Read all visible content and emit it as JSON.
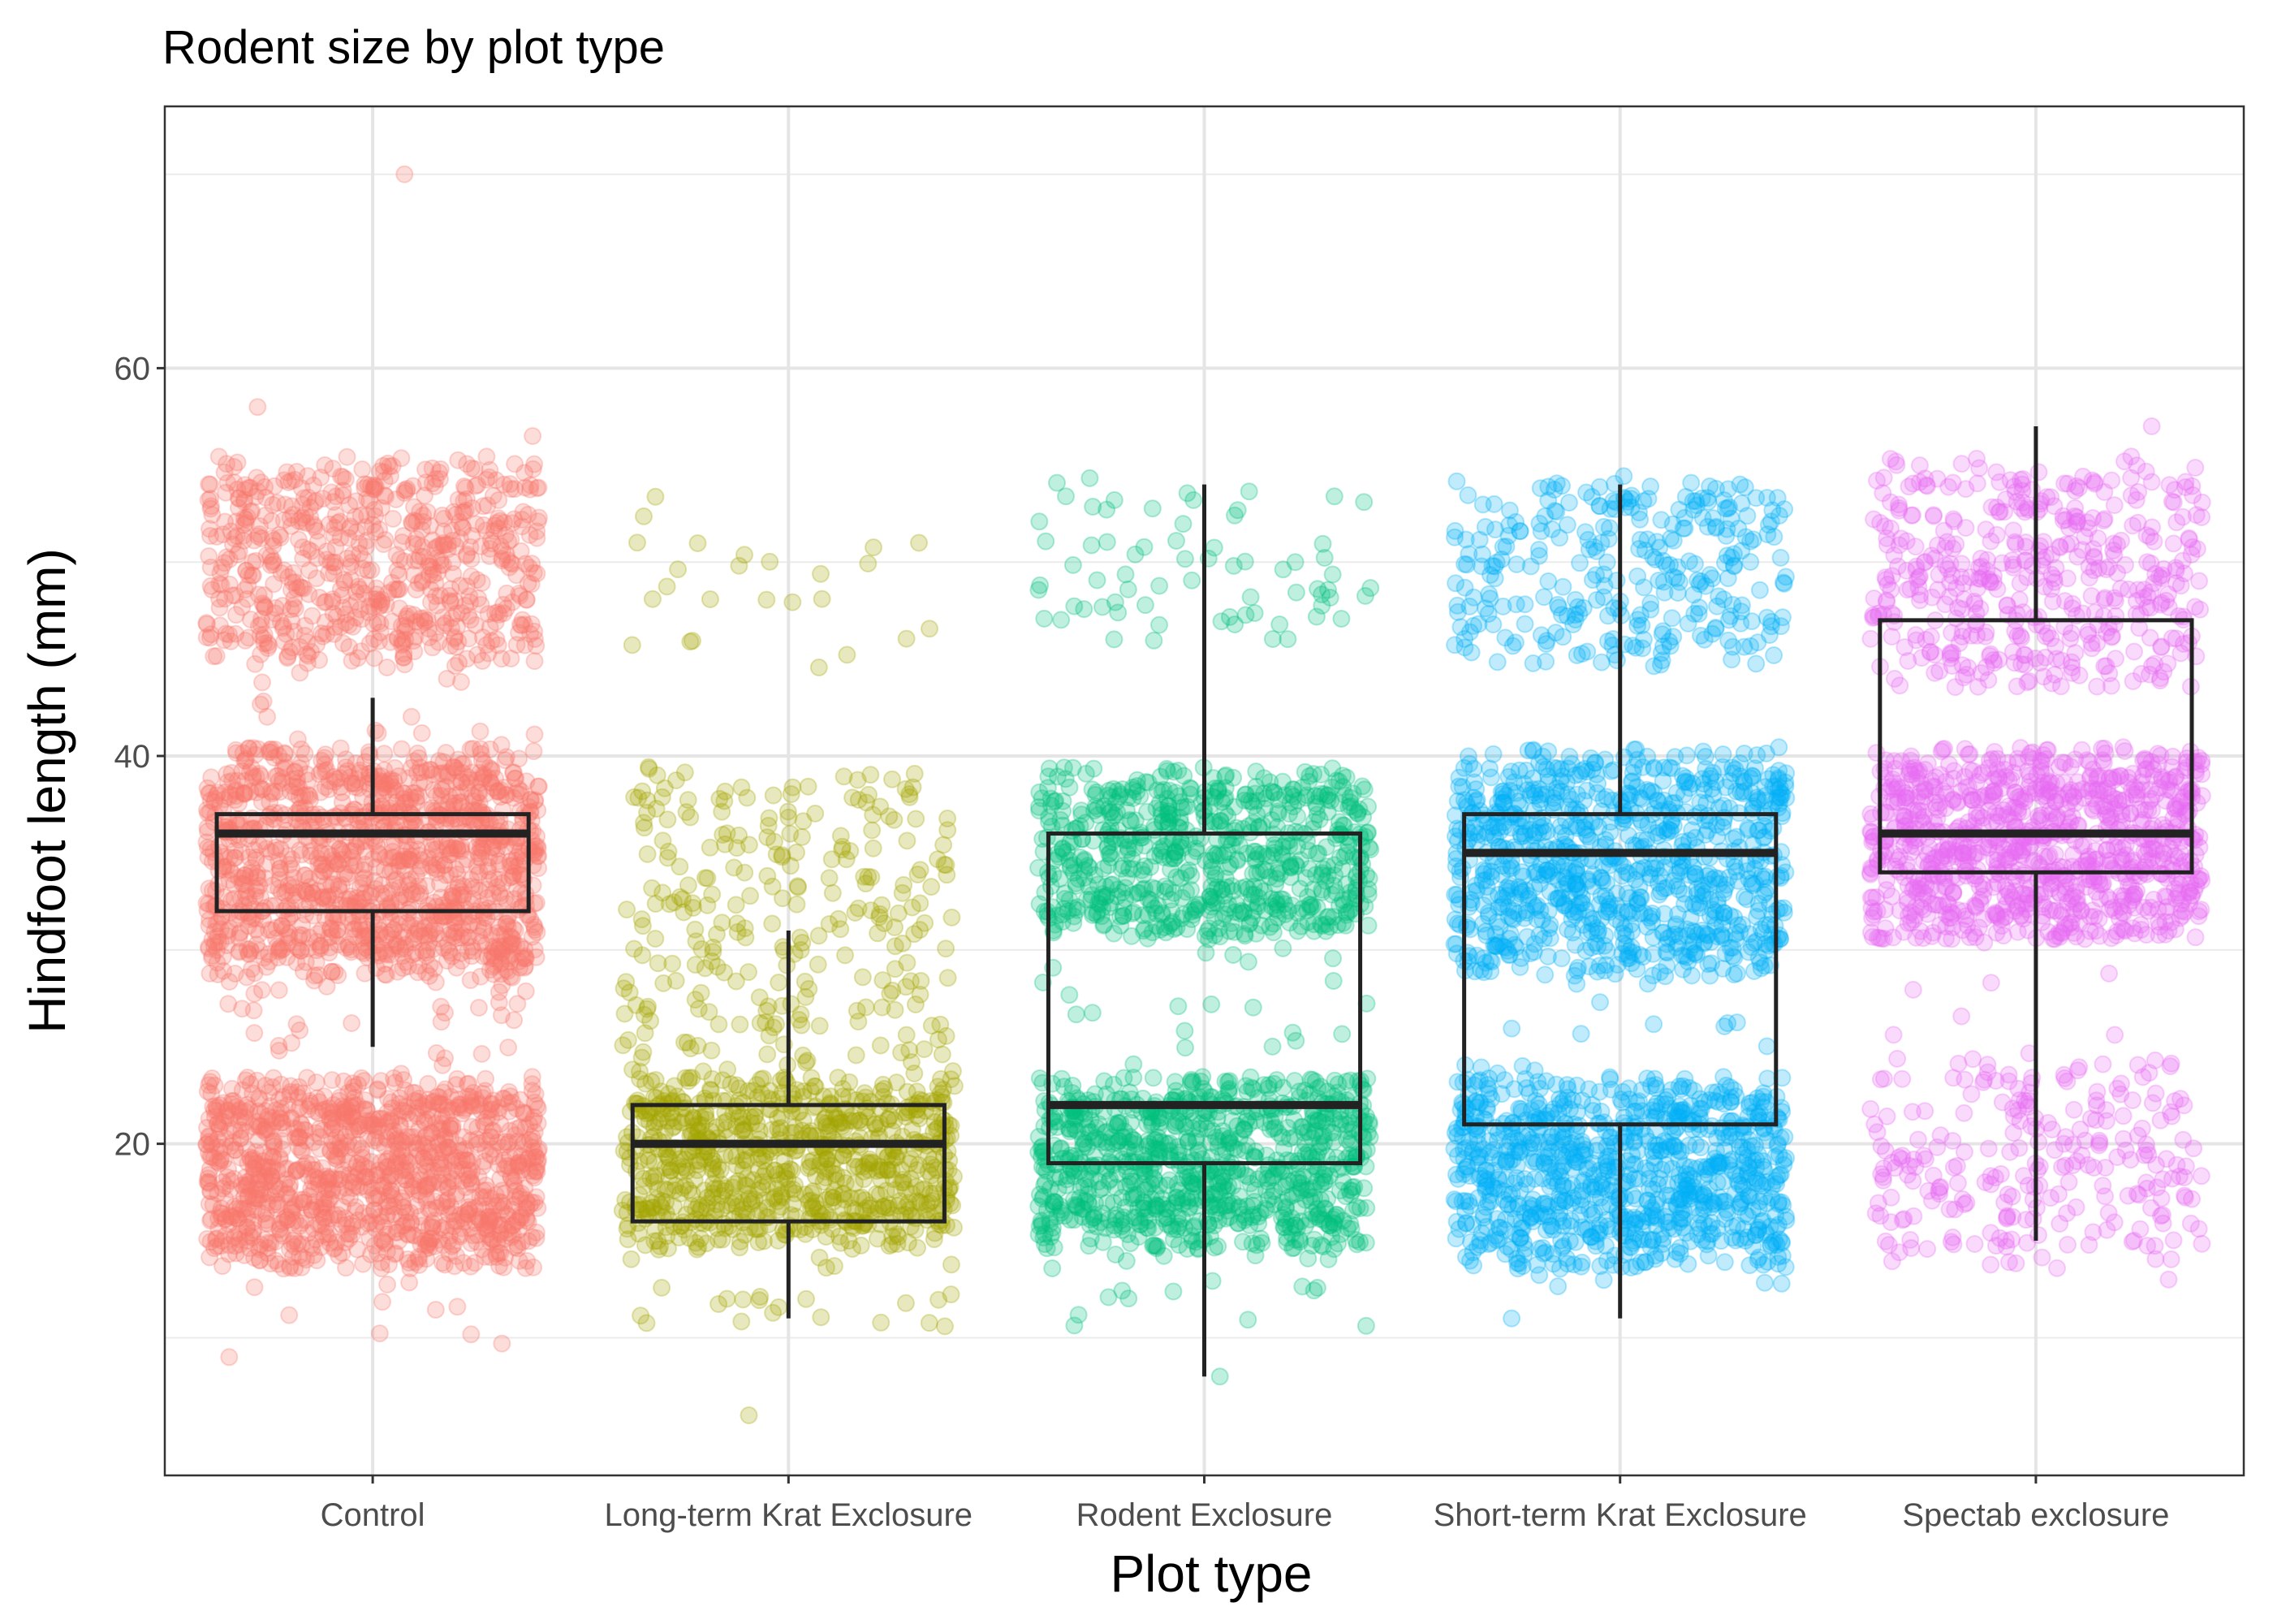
{
  "chart_data": {
    "type": "boxplot",
    "title": "Rodent size by plot type",
    "xlabel": "Plot type",
    "ylabel": "Hindfoot length (mm)",
    "ylim": [
      2.9,
      73.5
    ],
    "y_ticks": [
      20,
      40,
      60
    ],
    "y_minor_gridlines": [
      10,
      30,
      50,
      70
    ],
    "grid": true,
    "legend": "none",
    "categories": [
      "Control",
      "Long-term Krat Exclosure",
      "Rodent Exclosure",
      "Short-term Krat Exclosure",
      "Spectab exclosure"
    ],
    "colors": [
      "#F8766D",
      "#A3A500",
      "#00BF7D",
      "#00B0F6",
      "#E76BF3"
    ],
    "point_alpha": 0.25,
    "boxes": [
      {
        "category": "Control",
        "whisker_low": 25,
        "q1": 32,
        "median": 36,
        "q3": 37,
        "whisker_high": 43
      },
      {
        "category": "Long-term Krat Exclosure",
        "whisker_low": 11,
        "q1": 16,
        "median": 20,
        "q3": 22,
        "whisker_high": 31
      },
      {
        "category": "Rodent Exclosure",
        "whisker_low": 8,
        "q1": 19,
        "median": 22,
        "q3": 36,
        "whisker_high": 54
      },
      {
        "category": "Short-term Krat Exclosure",
        "whisker_low": 11,
        "q1": 21,
        "median": 35,
        "q3": 37,
        "whisker_high": 54
      },
      {
        "category": "Spectab exclosure",
        "whisker_low": 15,
        "q1": 34,
        "median": 36,
        "q3": 47,
        "whisker_high": 57
      }
    ],
    "jittered_points": [
      {
        "category": "Control",
        "bands": [
          {
            "range": [
              45,
              55
            ],
            "n": 650
          },
          {
            "range": [
              29,
              40
            ],
            "n": 1300
          },
          {
            "range": [
              14,
              23
            ],
            "n": 1200
          },
          {
            "range": [
              23,
              29
            ],
            "n": 40
          },
          {
            "range": [
              40,
              45
            ],
            "n": 20
          },
          {
            "range": [
              9,
              14
            ],
            "n": 12
          }
        ],
        "extremes": [
          70,
          58,
          56.5,
          9
        ]
      },
      {
        "category": "Long-term Krat Exclosure",
        "bands": [
          {
            "range": [
              45,
              53
            ],
            "n": 25
          },
          {
            "range": [
              27,
              39
            ],
            "n": 220
          },
          {
            "range": [
              15,
              23
            ],
            "n": 800
          },
          {
            "range": [
              11,
              15
            ],
            "n": 25
          },
          {
            "range": [
              23,
              27
            ],
            "n": 60
          }
        ],
        "extremes": [
          6
        ]
      },
      {
        "category": "Rodent Exclosure",
        "bands": [
          {
            "range": [
              46,
              54
            ],
            "n": 70
          },
          {
            "range": [
              31,
              39
            ],
            "n": 700
          },
          {
            "range": [
              15,
              23
            ],
            "n": 900
          },
          {
            "range": [
              23,
              31
            ],
            "n": 25
          },
          {
            "range": [
              11,
              15
            ],
            "n": 20
          }
        ],
        "extremes": [
          8
        ]
      },
      {
        "category": "Short-term Krat Exclosure",
        "bands": [
          {
            "range": [
              45,
              54
            ],
            "n": 300
          },
          {
            "range": [
              29,
              40
            ],
            "n": 900
          },
          {
            "range": [
              14,
              23
            ],
            "n": 900
          },
          {
            "range": [
              23,
              29
            ],
            "n": 20
          },
          {
            "range": [
              13,
              14
            ],
            "n": 6
          }
        ],
        "extremes": [
          11
        ]
      },
      {
        "category": "Spectab exclosure",
        "bands": [
          {
            "range": [
              44,
              55
            ],
            "n": 450
          },
          {
            "range": [
              31,
              40
            ],
            "n": 1000
          },
          {
            "range": [
              14,
              24
            ],
            "n": 250
          },
          {
            "range": [
              24,
              31
            ],
            "n": 8
          }
        ],
        "extremes": [
          57,
          13
        ]
      }
    ]
  }
}
